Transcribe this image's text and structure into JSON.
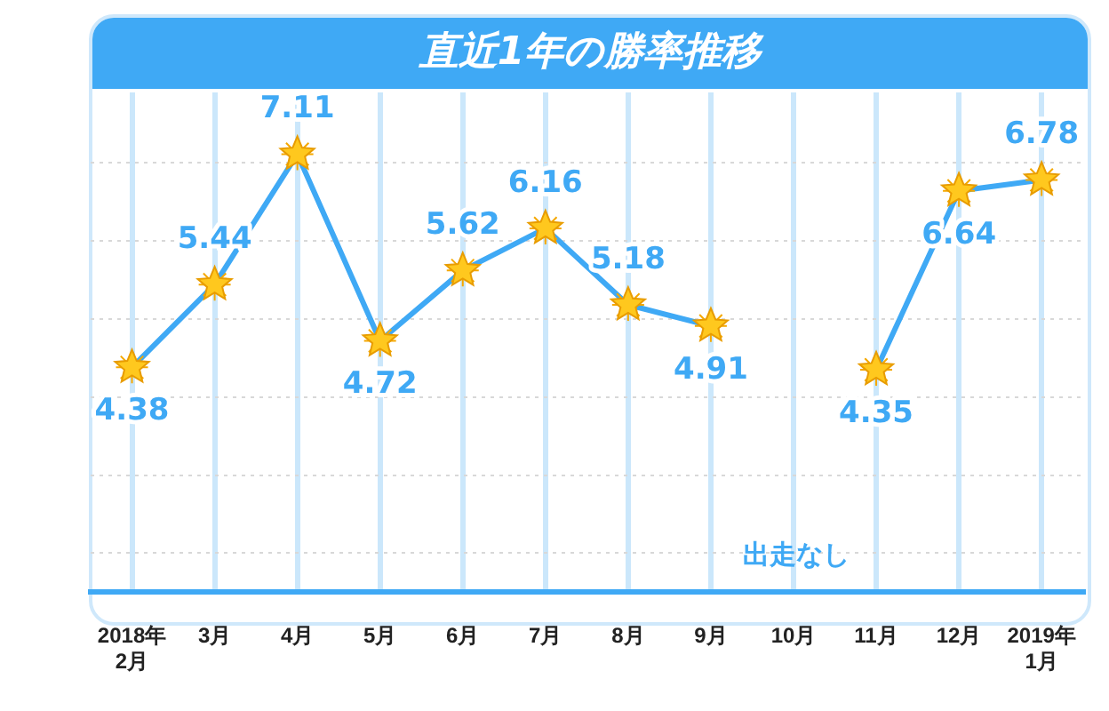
{
  "chart_data": {
    "type": "line",
    "title": "直近1年の勝率推移",
    "categories": [
      "2018年\n2月",
      "3月",
      "4月",
      "5月",
      "6月",
      "7月",
      "8月",
      "9月",
      "10月",
      "11月",
      "12月",
      "2019年\n1月"
    ],
    "series": [
      {
        "color": "#3fa9f5",
        "values": [
          4.38,
          5.44,
          7.11,
          4.72,
          5.62,
          6.16,
          5.18,
          4.91,
          null,
          4.35,
          6.64,
          6.78
        ]
      }
    ],
    "ylim": [
      1.5,
      7.9
    ],
    "yticks": [
      {
        "value": 2,
        "label": null
      },
      {
        "value": 3,
        "label": null
      },
      {
        "value": 4,
        "label": null
      },
      {
        "value": 5,
        "label": null
      },
      {
        "value": 6,
        "label": null
      },
      {
        "value": 7,
        "label": null
      }
    ],
    "tick_labels": "x",
    "grid": true,
    "legend": false,
    "marker": "star",
    "line_style": "solid",
    "data_labels": true,
    "annotations": [
      "出走なし"
    ]
  }
}
